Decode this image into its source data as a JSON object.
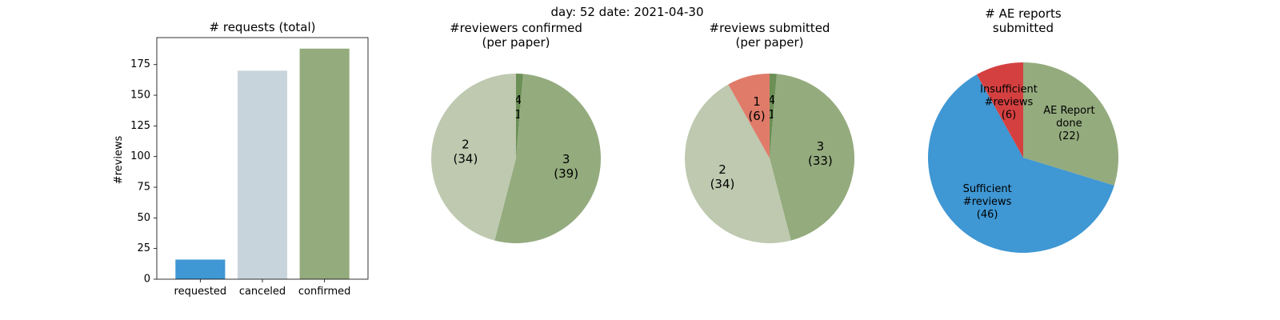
{
  "suptitle": "day: 52   date: 2021-04-30",
  "chart_data": [
    {
      "type": "bar",
      "title": "# requests (total)",
      "xlabel": "",
      "ylabel": "#reviews",
      "categories": [
        "requested",
        "canceled",
        "confirmed"
      ],
      "values": [
        16,
        170,
        188
      ],
      "colors": [
        "#3f97d3",
        "#c8d4dc",
        "#94ab7e"
      ],
      "ylim": [
        0,
        197
      ],
      "yticks": [
        0,
        25,
        50,
        75,
        100,
        125,
        150,
        175
      ],
      "grid": false
    },
    {
      "type": "pie",
      "title": "#reviewers confirmed\n(per paper)",
      "slices": [
        {
          "label": "4\n(1)",
          "value": 1,
          "color": "#6b8f55"
        },
        {
          "label": "3\n(39)",
          "value": 39,
          "color": "#94ab7e"
        },
        {
          "label": "2\n(34)",
          "value": 34,
          "color": "#bec9b0"
        }
      ]
    },
    {
      "type": "pie",
      "title": "#reviews submitted\n(per paper)",
      "slices": [
        {
          "label": "4\n(1)",
          "value": 1,
          "color": "#6b8f55"
        },
        {
          "label": "3\n(33)",
          "value": 33,
          "color": "#94ab7e"
        },
        {
          "label": "2\n(34)",
          "value": 34,
          "color": "#bec9b0"
        },
        {
          "label": "1\n(6)",
          "value": 6,
          "color": "#e07b6a"
        }
      ]
    },
    {
      "type": "pie",
      "title": "# AE reports\nsubmitted",
      "slices": [
        {
          "label": "AE Report\ndone\n(22)",
          "value": 22,
          "color": "#94ab7e"
        },
        {
          "label": "Sufficient\n#reviews\n(46)",
          "value": 46,
          "color": "#3f97d3"
        },
        {
          "label": "Insufficient\n#reviews\n(6)",
          "value": 6,
          "color": "#d44040"
        }
      ]
    }
  ]
}
